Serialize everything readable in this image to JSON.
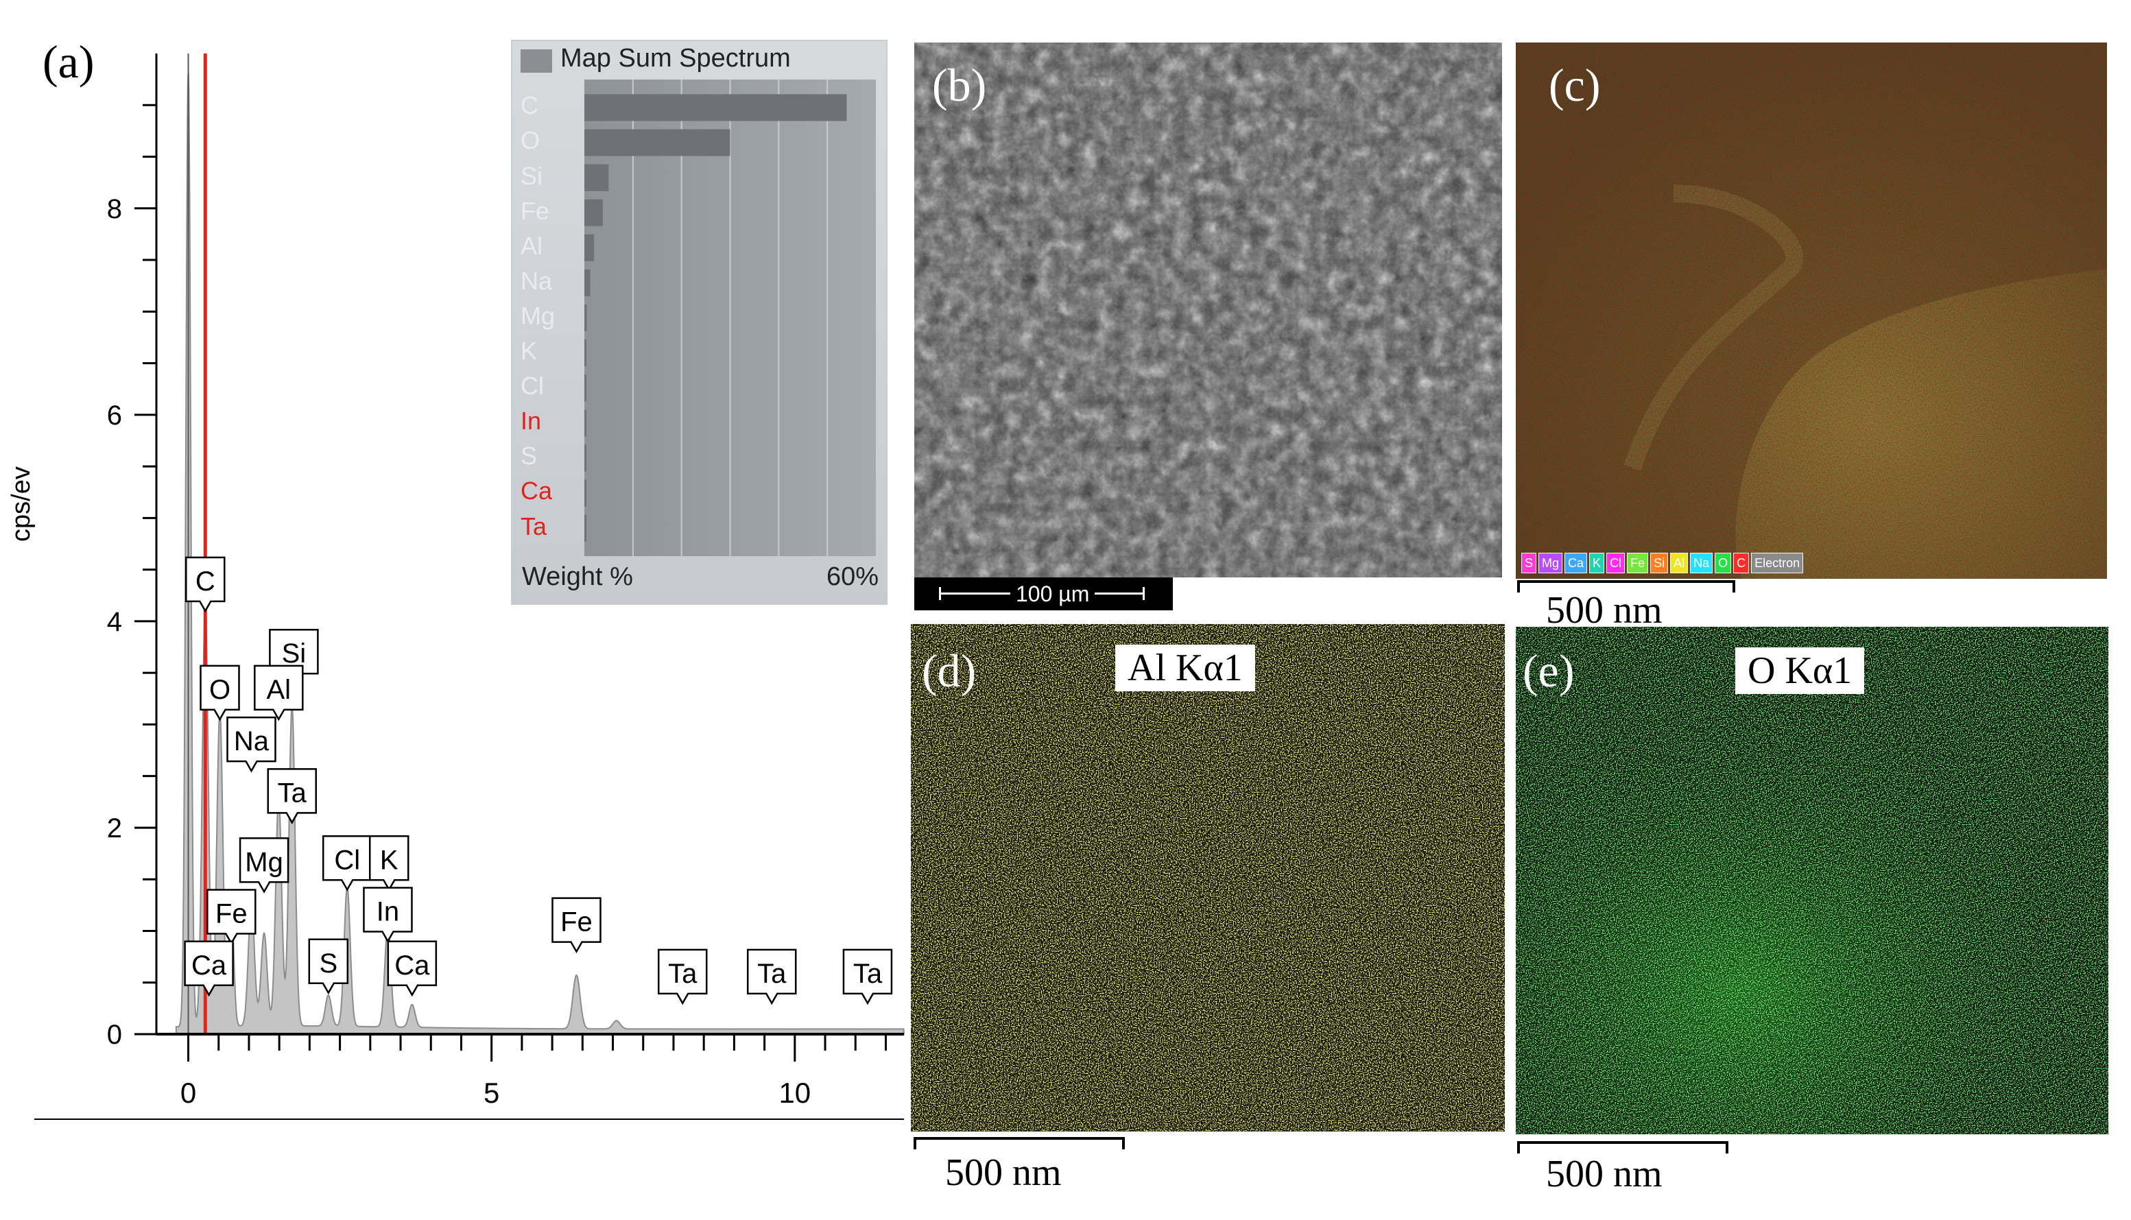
{
  "panels": {
    "a": {
      "label": "(a)",
      "inset": {
        "title": "Map Sum Spectrum",
        "elements": [
          {
            "name": "C",
            "weight": 54,
            "highlight": false
          },
          {
            "name": "O",
            "weight": 30,
            "highlight": false
          },
          {
            "name": "Si",
            "weight": 5,
            "highlight": false
          },
          {
            "name": "Fe",
            "weight": 3.8,
            "highlight": false
          },
          {
            "name": "Al",
            "weight": 2,
            "highlight": false
          },
          {
            "name": "Na",
            "weight": 1.2,
            "highlight": false
          },
          {
            "name": "Mg",
            "weight": 0.5,
            "highlight": false
          },
          {
            "name": "K",
            "weight": 0.3,
            "highlight": false
          },
          {
            "name": "Cl",
            "weight": 0.3,
            "highlight": false
          },
          {
            "name": "In",
            "weight": 0.2,
            "highlight": true
          },
          {
            "name": "S",
            "weight": 0.2,
            "highlight": false
          },
          {
            "name": "Ca",
            "weight": 0.2,
            "highlight": true
          },
          {
            "name": "Ta",
            "weight": 0.1,
            "highlight": true
          }
        ],
        "xlabel": "Weight %",
        "xmax_label": "60%",
        "xmax": 60,
        "colors": {
          "highlight": "#e0241b",
          "normal": "#e8ecf0"
        }
      }
    },
    "b": {
      "label": "(b)",
      "scale_text": "100 µm"
    },
    "c": {
      "label": "(c)",
      "scale_text": "500 nm",
      "legend": [
        {
          "name": "S",
          "color": "#ff3bd5"
        },
        {
          "name": "Mg",
          "color": "#b84dff"
        },
        {
          "name": "Ca",
          "color": "#3aa8ff"
        },
        {
          "name": "K",
          "color": "#22d3b0"
        },
        {
          "name": "Cl",
          "color": "#ff2bf0"
        },
        {
          "name": "Fe",
          "color": "#73e83a"
        },
        {
          "name": "Si",
          "color": "#ff7f1e"
        },
        {
          "name": "Al",
          "color": "#f0e524"
        },
        {
          "name": "Na",
          "color": "#27e0ff"
        },
        {
          "name": "O",
          "color": "#26e04a"
        },
        {
          "name": "C",
          "color": "#ff2b2b"
        },
        {
          "name": "Electron",
          "color": "#8a8a8a"
        }
      ]
    },
    "d": {
      "label": "(d)",
      "title": "Al Kα1",
      "scale_text": "500 nm",
      "color": "#f2f031"
    },
    "e": {
      "label": "(e)",
      "title": "O Kα1",
      "scale_text": "500 nm",
      "color": "#2ee42e"
    }
  },
  "chart_data": {
    "type": "line",
    "title": "",
    "xlabel": "",
    "ylabel": "cps/ev",
    "xlim": [
      -0.3,
      11.8
    ],
    "ylim": [
      0,
      9.5
    ],
    "x_ticks": [
      "0",
      "5",
      "10"
    ],
    "y_ticks": [
      "0",
      "2",
      "4",
      "6",
      "8"
    ],
    "marker_line_kev": 0.28,
    "spectrum_peaks": [
      {
        "kev": 0.0,
        "height": 9.3,
        "width": 0.04
      },
      {
        "kev": 0.28,
        "height": 4.1,
        "width": 0.05
      },
      {
        "kev": 0.52,
        "height": 3.05,
        "width": 0.05
      },
      {
        "kev": 0.71,
        "height": 1.15,
        "width": 0.04
      },
      {
        "kev": 1.04,
        "height": 1.2,
        "width": 0.05
      },
      {
        "kev": 1.25,
        "height": 0.9,
        "width": 0.05
      },
      {
        "kev": 1.49,
        "height": 2.2,
        "width": 0.05
      },
      {
        "kev": 1.71,
        "height": 3.1,
        "width": 0.05
      },
      {
        "kev": 2.31,
        "height": 0.3,
        "width": 0.05
      },
      {
        "kev": 2.62,
        "height": 1.35,
        "width": 0.05
      },
      {
        "kev": 3.29,
        "height": 0.98,
        "width": 0.05
      },
      {
        "kev": 3.69,
        "height": 0.22,
        "width": 0.05
      },
      {
        "kev": 6.4,
        "height": 0.52,
        "width": 0.06
      },
      {
        "kev": 7.06,
        "height": 0.08,
        "width": 0.06
      }
    ],
    "peak_labels": [
      {
        "label": "C",
        "kev": 0.28,
        "y": 4.1
      },
      {
        "label": "Si",
        "kev": 1.74,
        "y": 3.4
      },
      {
        "label": "O",
        "kev": 0.52,
        "y": 3.05
      },
      {
        "label": "Al",
        "kev": 1.49,
        "y": 3.05
      },
      {
        "label": "Na",
        "kev": 1.04,
        "y": 2.55
      },
      {
        "label": "Ta",
        "kev": 1.71,
        "y": 2.05
      },
      {
        "label": "Mg",
        "kev": 1.25,
        "y": 1.38
      },
      {
        "label": "Cl",
        "kev": 2.62,
        "y": 1.4
      },
      {
        "label": "K",
        "kev": 3.31,
        "y": 1.4
      },
      {
        "label": "In",
        "kev": 3.29,
        "y": 0.9
      },
      {
        "label": "Fe",
        "kev": 0.71,
        "y": 0.88
      },
      {
        "label": "Fe",
        "kev": 6.4,
        "y": 0.8
      },
      {
        "label": "Ca",
        "kev": 0.34,
        "y": 0.38
      },
      {
        "label": "S",
        "kev": 2.31,
        "y": 0.4
      },
      {
        "label": "Ca",
        "kev": 3.69,
        "y": 0.38
      },
      {
        "label": "Ta",
        "kev": 8.15,
        "y": 0.3
      },
      {
        "label": "Ta",
        "kev": 9.62,
        "y": 0.3
      },
      {
        "label": "Ta",
        "kev": 11.2,
        "y": 0.3
      }
    ]
  }
}
